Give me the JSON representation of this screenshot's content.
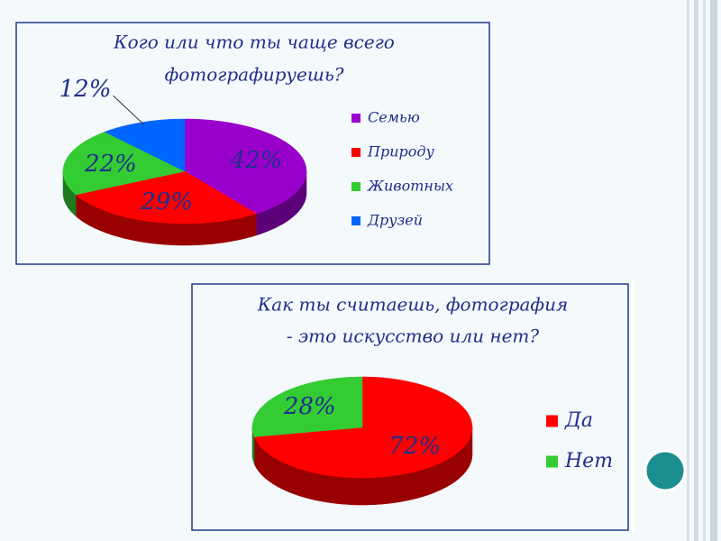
{
  "chart_data": [
    {
      "type": "pie3d",
      "title": [
        "Кого или что ты чаще всего",
        "фотографируешь?"
      ],
      "categories": [
        "Семью",
        "Природу",
        "Животных",
        "Друзей"
      ],
      "values": [
        42,
        29,
        22,
        12
      ],
      "value_labels": [
        "42%",
        "29%",
        "22%",
        "12%"
      ],
      "colors": [
        "#9900cc",
        "#ff0000",
        "#33cc33",
        "#0066ff"
      ]
    },
    {
      "type": "pie3d",
      "title": [
        "Как ты считаешь, фотография",
        "- это искусство или нет?"
      ],
      "categories": [
        "Да",
        "Нет"
      ],
      "values": [
        72,
        28
      ],
      "value_labels": [
        "72%",
        "28%"
      ],
      "colors": [
        "#ff0000",
        "#33cc33"
      ]
    }
  ]
}
